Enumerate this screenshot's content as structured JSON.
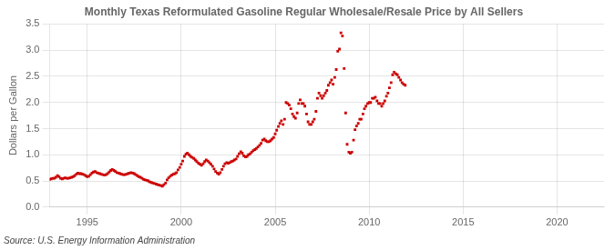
{
  "chart_data": {
    "type": "scatter",
    "title": "Monthly Texas Reformulated Gasoline Regular Wholesale/Resale Price by All Sellers",
    "ylabel": "Dollars per Gallon",
    "annotations": [
      "Source: U.S. Energy Information Administration"
    ],
    "color": "#cc0000",
    "marker": "square",
    "grid": true,
    "xlim": [
      1993.0,
      2022.5
    ],
    "ylim": [
      0.0,
      3.5
    ],
    "xticks": [
      1995,
      2000,
      2005,
      2010,
      2015,
      2020
    ],
    "yticks": [
      {
        "value": 0.0,
        "label": "0.0"
      },
      0.5,
      {
        "value": 1.0,
        "label": "1.0"
      },
      1.5,
      {
        "value": 2.0,
        "label": "2.0"
      },
      2.5,
      {
        "value": 3.0,
        "label": "3.0"
      },
      3.5
    ],
    "x": [
      1993.0,
      1993.08,
      1993.17,
      1993.25,
      1993.33,
      1993.42,
      1993.5,
      1993.58,
      1993.67,
      1993.75,
      1993.83,
      1993.92,
      1994.0,
      1994.08,
      1994.17,
      1994.25,
      1994.33,
      1994.42,
      1994.5,
      1994.58,
      1994.67,
      1994.75,
      1994.83,
      1994.92,
      1995.0,
      1995.08,
      1995.17,
      1995.25,
      1995.33,
      1995.42,
      1995.5,
      1995.58,
      1995.67,
      1995.75,
      1995.83,
      1995.92,
      1996.0,
      1996.08,
      1996.17,
      1996.25,
      1996.33,
      1996.42,
      1996.5,
      1996.58,
      1996.67,
      1996.75,
      1996.83,
      1996.92,
      1997.0,
      1997.08,
      1997.17,
      1997.25,
      1997.33,
      1997.42,
      1997.5,
      1997.58,
      1997.67,
      1997.75,
      1997.83,
      1997.92,
      1998.0,
      1998.08,
      1998.17,
      1998.25,
      1998.33,
      1998.42,
      1998.5,
      1998.58,
      1998.67,
      1998.75,
      1998.83,
      1998.92,
      1999.0,
      1999.08,
      1999.17,
      1999.25,
      1999.33,
      1999.42,
      1999.5,
      1999.58,
      1999.67,
      1999.75,
      1999.83,
      1999.92,
      2000.0,
      2000.08,
      2000.17,
      2000.25,
      2000.33,
      2000.42,
      2000.5,
      2000.58,
      2000.67,
      2000.75,
      2000.83,
      2000.92,
      2001.0,
      2001.08,
      2001.17,
      2001.25,
      2001.33,
      2001.42,
      2001.5,
      2001.58,
      2001.67,
      2001.75,
      2001.83,
      2001.92,
      2002.0,
      2002.08,
      2002.17,
      2002.25,
      2002.33,
      2002.42,
      2002.5,
      2002.58,
      2002.67,
      2002.75,
      2002.83,
      2002.92,
      2003.0,
      2003.08,
      2003.17,
      2003.25,
      2003.33,
      2003.42,
      2003.5,
      2003.58,
      2003.67,
      2003.75,
      2003.83,
      2003.92,
      2004.0,
      2004.08,
      2004.17,
      2004.25,
      2004.33,
      2004.42,
      2004.5,
      2004.58,
      2004.67,
      2004.75,
      2004.83,
      2004.92,
      2005.0,
      2005.08,
      2005.17,
      2005.25,
      2005.33,
      2005.42,
      2005.5,
      2005.58,
      2005.67,
      2005.75,
      2005.83,
      2005.92,
      2006.0,
      2006.08,
      2006.17,
      2006.25,
      2006.33,
      2006.42,
      2006.5,
      2006.58,
      2006.67,
      2006.75,
      2006.83,
      2006.92,
      2007.0,
      2007.08,
      2007.17,
      2007.25,
      2007.33,
      2007.42,
      2007.5,
      2007.58,
      2007.67,
      2007.75,
      2007.83,
      2007.92,
      2008.0,
      2008.08,
      2008.17,
      2008.25,
      2008.33,
      2008.42,
      2008.5,
      2008.58,
      2008.67,
      2008.75,
      2008.83,
      2008.92,
      2009.0,
      2009.08,
      2009.17,
      2009.25,
      2009.33,
      2009.42,
      2009.5,
      2009.58,
      2009.67,
      2009.75,
      2009.83,
      2009.92,
      2010.0,
      2010.08,
      2010.17,
      2010.25,
      2010.33,
      2010.42,
      2010.5,
      2010.58,
      2010.67,
      2010.75,
      2010.83,
      2010.92,
      2011.0,
      2011.08,
      2011.17,
      2011.25,
      2011.33,
      2011.42,
      2011.5,
      2011.58,
      2011.67,
      2011.75,
      2011.83,
      2011.92
    ],
    "values": [
      0.53,
      0.54,
      0.55,
      0.55,
      0.57,
      0.6,
      0.58,
      0.55,
      0.54,
      0.55,
      0.56,
      0.55,
      0.55,
      0.56,
      0.57,
      0.58,
      0.6,
      0.63,
      0.65,
      0.64,
      0.64,
      0.63,
      0.62,
      0.6,
      0.58,
      0.59,
      0.62,
      0.65,
      0.67,
      0.68,
      0.66,
      0.65,
      0.64,
      0.63,
      0.62,
      0.61,
      0.62,
      0.64,
      0.67,
      0.7,
      0.72,
      0.7,
      0.68,
      0.66,
      0.65,
      0.64,
      0.63,
      0.62,
      0.62,
      0.63,
      0.64,
      0.65,
      0.66,
      0.65,
      0.64,
      0.62,
      0.6,
      0.58,
      0.57,
      0.55,
      0.53,
      0.52,
      0.51,
      0.5,
      0.48,
      0.47,
      0.46,
      0.45,
      0.44,
      0.43,
      0.42,
      0.41,
      0.4,
      0.43,
      0.46,
      0.52,
      0.56,
      0.59,
      0.61,
      0.63,
      0.64,
      0.66,
      0.71,
      0.76,
      0.82,
      0.88,
      0.97,
      1.01,
      1.03,
      1.0,
      0.97,
      0.95,
      0.93,
      0.9,
      0.87,
      0.84,
      0.82,
      0.8,
      0.83,
      0.87,
      0.9,
      0.88,
      0.85,
      0.82,
      0.78,
      0.73,
      0.68,
      0.65,
      0.63,
      0.66,
      0.72,
      0.78,
      0.83,
      0.85,
      0.84,
      0.85,
      0.87,
      0.88,
      0.9,
      0.92,
      0.97,
      1.02,
      1.06,
      1.03,
      0.98,
      0.96,
      0.97,
      1.0,
      1.02,
      1.05,
      1.08,
      1.1,
      1.12,
      1.15,
      1.18,
      1.22,
      1.28,
      1.3,
      1.27,
      1.25,
      1.25,
      1.27,
      1.3,
      1.33,
      1.4,
      1.47,
      1.54,
      1.6,
      1.65,
      1.58,
      1.68,
      2.0,
      1.98,
      1.95,
      1.88,
      1.78,
      1.73,
      1.7,
      1.8,
      1.98,
      2.05,
      1.98,
      1.98,
      1.93,
      1.78,
      1.63,
      1.58,
      1.58,
      1.63,
      1.68,
      1.83,
      2.08,
      2.18,
      2.13,
      2.08,
      2.13,
      2.18,
      2.23,
      2.33,
      2.38,
      2.43,
      2.35,
      2.48,
      2.63,
      2.98,
      3.02,
      3.33,
      3.27,
      2.65,
      1.8,
      1.2,
      1.05,
      1.03,
      1.05,
      1.28,
      1.48,
      1.55,
      1.6,
      1.68,
      1.68,
      1.78,
      1.88,
      1.93,
      1.98,
      2.0,
      2.0,
      2.08,
      2.08,
      2.1,
      2.03,
      1.98,
      1.98,
      1.93,
      1.98,
      2.03,
      2.12,
      2.18,
      2.28,
      2.38,
      2.53,
      2.58,
      2.55,
      2.53,
      2.48,
      2.43,
      2.38,
      2.35,
      2.33
    ]
  }
}
